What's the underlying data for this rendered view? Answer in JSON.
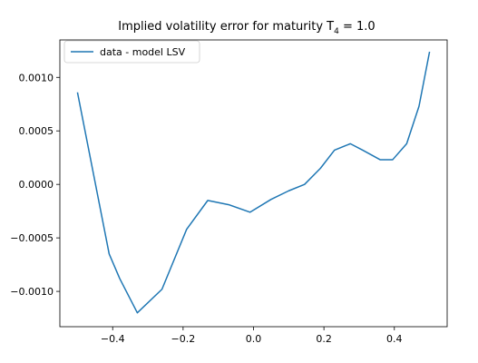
{
  "chart_data": {
    "type": "line",
    "title": {
      "prefix": "Implied volatility error for maturity T",
      "subscript": "4",
      "suffix": " = 1.0"
    },
    "xlabel": "",
    "ylabel": "",
    "xlim": [
      -0.55,
      0.55
    ],
    "ylim": [
      -0.00133,
      0.00135
    ],
    "x_ticks": [
      -0.4,
      -0.2,
      0.0,
      0.2,
      0.4
    ],
    "x_tick_labels": [
      "−0.4",
      "−0.2",
      "0.0",
      "0.2",
      "0.4"
    ],
    "y_ticks": [
      -0.001,
      -0.0005,
      0.0,
      0.0005,
      0.001
    ],
    "y_tick_labels": [
      "−0.0010",
      "−0.0005",
      "0.0000",
      "0.0005",
      "0.0010"
    ],
    "grid": false,
    "legend": {
      "position": "top-left"
    },
    "series": [
      {
        "name": "data - model  LSV",
        "color": "#1f77b4",
        "x": [
          -0.5,
          -0.41,
          -0.38,
          -0.33,
          -0.26,
          -0.19,
          -0.13,
          -0.07,
          -0.01,
          0.05,
          0.1,
          0.145,
          0.19,
          0.23,
          0.275,
          0.31,
          0.36,
          0.395,
          0.435,
          0.47,
          0.5
        ],
        "y": [
          0.00086,
          -0.00065,
          -0.00088,
          -0.0012,
          -0.00098,
          -0.00042,
          -0.00015,
          -0.00019,
          -0.00026,
          -0.00014,
          -6e-05,
          0.0,
          0.00015,
          0.00032,
          0.00038,
          0.00032,
          0.00023,
          0.00023,
          0.00038,
          0.00073,
          0.00124
        ]
      }
    ]
  }
}
